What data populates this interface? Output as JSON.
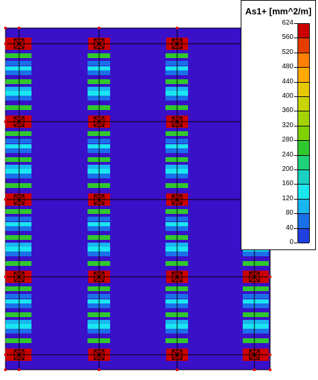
{
  "legend": {
    "title": "As1+ [mm^2/m]",
    "labels": [
      "624",
      "560",
      "520",
      "480",
      "440",
      "400",
      "360",
      "320",
      "280",
      "240",
      "200",
      "160",
      "120",
      "80",
      "40",
      "0"
    ],
    "colors": [
      "#cc0000",
      "#e53c00",
      "#ff7f00",
      "#ffaa00",
      "#e6c800",
      "#c8d400",
      "#a4d400",
      "#7fd200",
      "#2fc82f",
      "#1fd27a",
      "#1ad0c0",
      "#1ae6f0",
      "#19b6f0",
      "#1a70e8",
      "#2040e0",
      "#3a10c8"
    ]
  },
  "colors": {
    "background": "#3a10c8",
    "mesh_line": "#000000",
    "support": "#dd0000",
    "band_blue": "#1a70e8",
    "band_cyan": "#1ae6f0",
    "band_green": "#2fc82f",
    "band_light_blue": "#19b6f0",
    "peak": "#cc0000"
  }
}
